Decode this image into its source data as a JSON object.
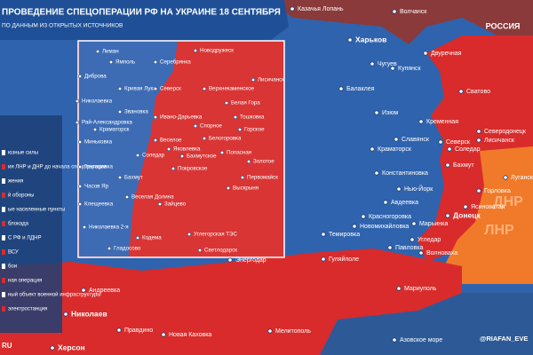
{
  "header": {
    "title": "ПРОВЕДЕНИЕ СПЕЦОПЕРАЦИИ РФ НА УКРАИНЕ 18 СЕНТЯБРЯ",
    "subtitle": "ПО ДАННЫМ ИЗ ОТКРЫТЫХ ИСТОЧНИКОВ"
  },
  "legend": [
    "юзные силы",
    "ия ЛНР и ДНР до начала спецоперации",
    "жения",
    "й обороны",
    "ые населенные пункты",
    "блокада",
    "С РФ и ЛДНР",
    "ВСУ",
    "бои",
    "ная операция",
    "ный объект военной инфраструктуры",
    "электростанция"
  ],
  "regions": [
    "ЛНР",
    "ДНР",
    "РОССИЯ"
  ],
  "places": [
    "Казачья Лопань",
    "Волчанск",
    "Харьков",
    "Чугуев",
    "Двуречная",
    "Купянск",
    "Балаклея",
    "Сватово",
    "Изюм",
    "Кременная",
    "Северодонецк",
    "Лисичанск",
    "Славянск",
    "Северск",
    "Краматорск",
    "Соледар",
    "Бахмут",
    "Константиновка",
    "Горловка",
    "Луганск",
    "Нью-Йорк",
    "Авдеевка",
    "Донецк",
    "Красногоровка",
    "Марьинка",
    "Ясиноватая",
    "Новомихайловка",
    "Угледар",
    "Темировка",
    "Павловка",
    "Волноваха",
    "Гуляйполе",
    "Мариуполь",
    "Энергодар",
    "Андреевка",
    "Николаев",
    "Правдино",
    "Херсон",
    "Новая Каховка",
    "Мелитополь",
    "Азовское море"
  ],
  "inset": [
    "Лиман",
    "Ямполь",
    "Серебрянка",
    "Новодружеск",
    "Диброва",
    "Кривая Лука",
    "Северск",
    "Верхнекаменское",
    "Николаевка",
    "Звановка",
    "Ивано-Дарьевка",
    "Белая Гора",
    "Рай-Александровка",
    "Спорное",
    "Тошковка",
    "Краматорск",
    "Горское",
    "Белогоровка",
    "Миньковка",
    "Веселое",
    "Яковлевка",
    "Соледар",
    "Бахмутское",
    "Попасная",
    "Золотое",
    "Григоровка",
    "Покровское",
    "Бахмут",
    "Часов Яр",
    "Веселая Долина",
    "Выскрыня",
    "Первомайск",
    "Клещеевка",
    "Зайцево",
    "Николаевка 2-я",
    "Кодема",
    "Углегорская ТЭС",
    "Гладосово",
    "Светлодарск",
    "Лисичанск"
  ],
  "footer": {
    "handle": "@RIAFAN_EVE",
    "site": "RU"
  }
}
